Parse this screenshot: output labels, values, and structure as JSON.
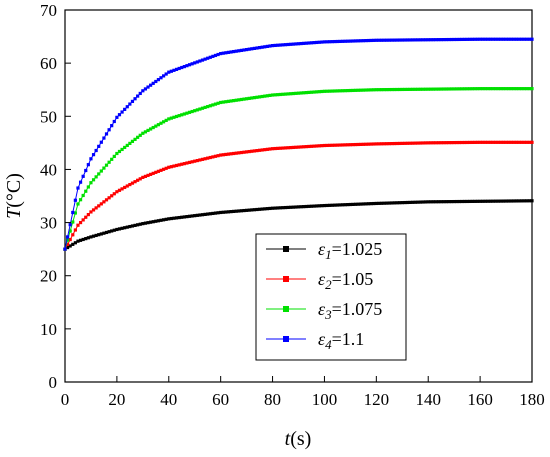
{
  "chart_data": {
    "type": "scatter",
    "xlabel": "t(s)",
    "ylabel": "T(°C)",
    "xlabel_var": "t",
    "xlabel_unit": "(s)",
    "ylabel_var": "T",
    "ylabel_unit": "(°C)",
    "xlim": [
      0,
      180
    ],
    "ylim": [
      0,
      70
    ],
    "xticks": [
      "0",
      "20",
      "40",
      "60",
      "80",
      "100",
      "120",
      "140",
      "160",
      "180"
    ],
    "yticks": [
      "0",
      "10",
      "20",
      "30",
      "40",
      "50",
      "60",
      "70"
    ],
    "grid": false,
    "legend_position": "bottom-right",
    "series": [
      {
        "name": "ε1=1.025",
        "sym": "ε",
        "sub": "1",
        "val": "=1.025",
        "color": "#000000",
        "x": [
          0,
          5,
          10,
          20,
          30,
          40,
          60,
          80,
          100,
          120,
          140,
          160,
          180
        ],
        "y": [
          25.0,
          26.5,
          27.3,
          28.7,
          29.8,
          30.7,
          31.9,
          32.7,
          33.2,
          33.6,
          33.9,
          34.0,
          34.1
        ]
      },
      {
        "name": "ε2=1.05",
        "sym": "ε",
        "sub": "2",
        "val": "=1.05",
        "color": "#ff0000",
        "x": [
          0,
          5,
          10,
          20,
          30,
          40,
          60,
          80,
          100,
          120,
          140,
          160,
          180
        ],
        "y": [
          25.0,
          29.5,
          32.0,
          35.8,
          38.5,
          40.4,
          42.7,
          43.9,
          44.5,
          44.8,
          45.0,
          45.1,
          45.1
        ]
      },
      {
        "name": "ε3=1.075",
        "sym": "ε",
        "sub": "3",
        "val": "=1.075",
        "color": "#00e000",
        "x": [
          0,
          5,
          10,
          20,
          30,
          40,
          60,
          80,
          100,
          120,
          140,
          160,
          180
        ],
        "y": [
          25.0,
          33.5,
          37.5,
          43.0,
          46.8,
          49.5,
          52.6,
          54.0,
          54.7,
          55.0,
          55.1,
          55.2,
          55.2
        ]
      },
      {
        "name": "ε4=1.1",
        "sym": "ε",
        "sub": "4",
        "val": "=1.1",
        "color": "#0000ff",
        "x": [
          0,
          5,
          10,
          20,
          30,
          40,
          60,
          80,
          100,
          120,
          140,
          160,
          180
        ],
        "y": [
          25.0,
          36.5,
          42.0,
          49.8,
          54.8,
          58.3,
          61.8,
          63.3,
          64.0,
          64.3,
          64.4,
          64.5,
          64.5
        ]
      }
    ]
  }
}
